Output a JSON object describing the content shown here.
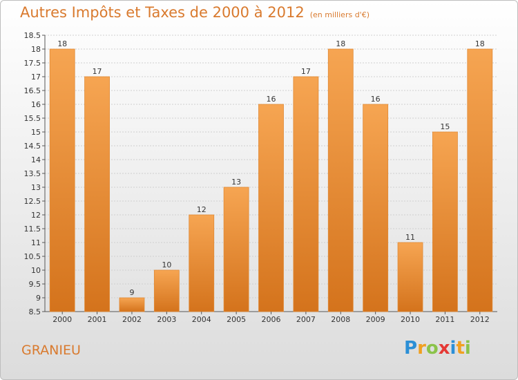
{
  "title": "Autres Impôts et Taxes de 2000 à 2012",
  "title_unit": "(en milliers d'€)",
  "town": "GRANIEU",
  "logo": {
    "text": "Proxiti",
    "letters": [
      {
        "ch": "P",
        "color": "#2b8fd6"
      },
      {
        "ch": "r",
        "color": "#f0a020"
      },
      {
        "ch": "o",
        "color": "#8bc34a"
      },
      {
        "ch": "x",
        "color": "#e53935"
      },
      {
        "ch": "i",
        "color": "#2b8fd6"
      },
      {
        "ch": "t",
        "color": "#f0a020"
      },
      {
        "ch": "i",
        "color": "#8bc34a"
      }
    ]
  },
  "colors": {
    "bar": "#f29a43",
    "bar_dark": "#d4731c",
    "accent": "#d97a2e"
  },
  "chart_data": {
    "type": "bar",
    "categories": [
      "2000",
      "2001",
      "2002",
      "2003",
      "2004",
      "2005",
      "2006",
      "2007",
      "2008",
      "2009",
      "2010",
      "2011",
      "2012"
    ],
    "values": [
      18,
      17,
      9,
      10,
      12,
      13,
      16,
      17,
      18,
      16,
      11,
      15,
      18
    ],
    "ylim": [
      8.5,
      18.5
    ],
    "yticks": [
      8.5,
      9,
      9.5,
      10,
      10.5,
      11,
      11.5,
      12,
      12.5,
      13,
      13.5,
      14,
      14.5,
      15,
      15.5,
      16,
      16.5,
      17,
      17.5,
      18,
      18.5
    ],
    "grid": true
  }
}
